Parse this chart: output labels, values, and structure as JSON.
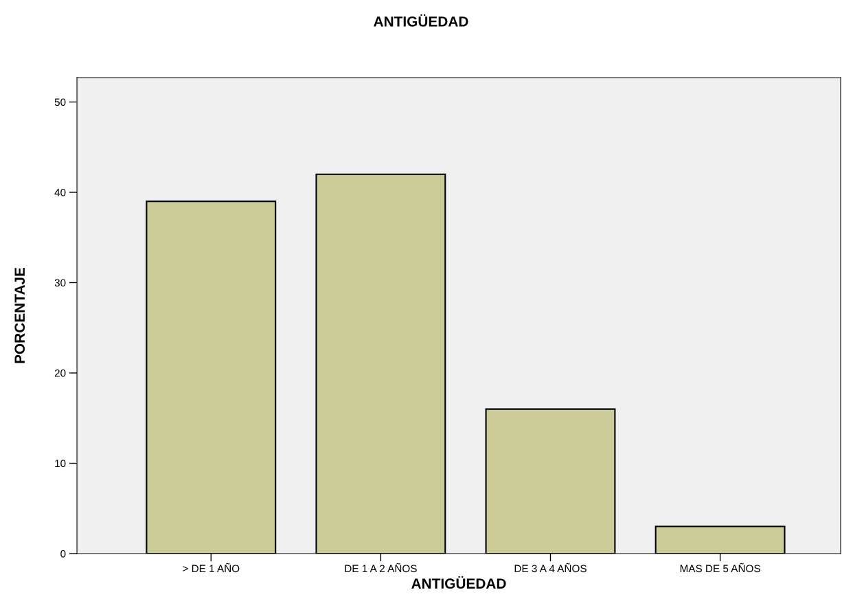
{
  "chart_data": {
    "type": "bar",
    "title": "ANTIGÜEDAD",
    "xlabel": "ANTIGÜEDAD",
    "ylabel": "PORCENTAJE",
    "categories": [
      "> DE 1 AÑO",
      "DE 1 A 2 AÑOS",
      "DE 3 A 4 AÑOS",
      "MAS DE 5 AÑOS"
    ],
    "values": [
      39,
      42,
      16,
      3
    ],
    "color": "#cccc99",
    "ylim": [
      0,
      52.7
    ],
    "yticks": [
      0,
      10,
      20,
      30,
      40,
      50
    ],
    "grid": false,
    "legend": false
  }
}
